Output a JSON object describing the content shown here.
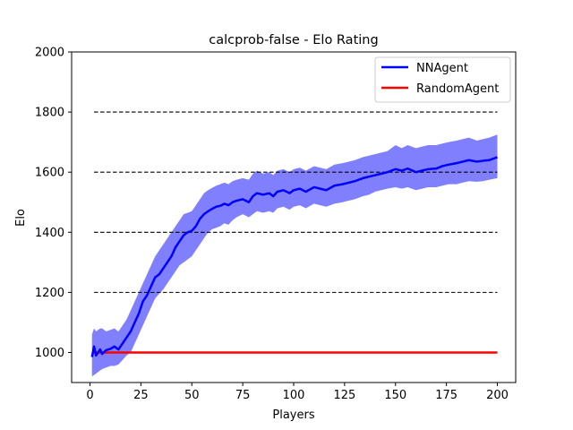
{
  "chart_data": {
    "type": "line",
    "title": "calcprob-false - Elo Rating",
    "xlabel": "Players",
    "ylabel": "Elo",
    "xlim": [
      -9,
      209
    ],
    "ylim": [
      900,
      2000
    ],
    "xticks": [
      0,
      25,
      50,
      75,
      100,
      125,
      150,
      175,
      200
    ],
    "yticks": [
      1000,
      1200,
      1400,
      1600,
      1800,
      2000
    ],
    "reference_lines": [
      1200,
      1400,
      1600,
      1800
    ],
    "legend_position": "top-right",
    "series": [
      {
        "name": "NNAgent",
        "color": "#0000ff",
        "band_color": "#8080ff",
        "x": [
          1,
          2,
          3,
          4,
          5,
          6,
          8,
          10,
          12,
          14,
          16,
          18,
          20,
          22,
          24,
          26,
          28,
          30,
          32,
          34,
          36,
          38,
          40,
          42,
          44,
          46,
          48,
          50,
          52,
          54,
          56,
          58,
          60,
          62,
          64,
          66,
          68,
          70,
          72,
          75,
          78,
          80,
          82,
          85,
          88,
          90,
          92,
          95,
          98,
          100,
          103,
          106,
          110,
          113,
          116,
          120,
          124,
          127,
          130,
          134,
          137,
          140,
          143,
          146,
          150,
          153,
          156,
          160,
          163,
          166,
          170,
          173,
          176,
          180,
          183,
          186,
          190,
          193,
          196,
          200
        ],
        "mean": [
          985,
          1020,
          990,
          1000,
          1010,
          995,
          1008,
          1012,
          1020,
          1010,
          1030,
          1050,
          1070,
          1100,
          1130,
          1170,
          1190,
          1220,
          1250,
          1260,
          1280,
          1300,
          1320,
          1350,
          1370,
          1390,
          1400,
          1405,
          1420,
          1445,
          1460,
          1470,
          1478,
          1485,
          1488,
          1495,
          1490,
          1500,
          1505,
          1510,
          1500,
          1520,
          1530,
          1525,
          1530,
          1520,
          1535,
          1540,
          1530,
          1540,
          1545,
          1535,
          1550,
          1545,
          1540,
          1555,
          1560,
          1565,
          1570,
          1580,
          1585,
          1590,
          1595,
          1600,
          1610,
          1605,
          1612,
          1600,
          1605,
          1610,
          1612,
          1620,
          1625,
          1630,
          1635,
          1640,
          1635,
          1638,
          1640,
          1650
        ],
        "lower": [
          920,
          925,
          930,
          935,
          940,
          945,
          950,
          955,
          955,
          960,
          975,
          990,
          1000,
          1030,
          1060,
          1090,
          1120,
          1150,
          1180,
          1195,
          1210,
          1230,
          1250,
          1270,
          1290,
          1300,
          1310,
          1320,
          1340,
          1360,
          1380,
          1400,
          1410,
          1415,
          1420,
          1430,
          1425,
          1440,
          1450,
          1460,
          1450,
          1460,
          1470,
          1465,
          1470,
          1465,
          1480,
          1485,
          1475,
          1485,
          1490,
          1480,
          1495,
          1490,
          1485,
          1495,
          1500,
          1505,
          1510,
          1520,
          1525,
          1535,
          1540,
          1545,
          1550,
          1545,
          1550,
          1540,
          1545,
          1550,
          1550,
          1555,
          1560,
          1560,
          1565,
          1570,
          1568,
          1570,
          1575,
          1580
        ],
        "upper": [
          1060,
          1080,
          1070,
          1075,
          1080,
          1080,
          1070,
          1075,
          1080,
          1070,
          1090,
          1110,
          1140,
          1170,
          1200,
          1230,
          1260,
          1290,
          1320,
          1340,
          1360,
          1380,
          1400,
          1420,
          1440,
          1460,
          1465,
          1470,
          1490,
          1510,
          1530,
          1540,
          1548,
          1555,
          1560,
          1565,
          1560,
          1570,
          1575,
          1580,
          1575,
          1595,
          1605,
          1595,
          1600,
          1590,
          1605,
          1610,
          1600,
          1610,
          1615,
          1605,
          1620,
          1615,
          1610,
          1625,
          1630,
          1635,
          1640,
          1650,
          1655,
          1660,
          1665,
          1670,
          1690,
          1680,
          1690,
          1680,
          1685,
          1690,
          1690,
          1695,
          1700,
          1705,
          1710,
          1715,
          1705,
          1710,
          1715,
          1725
        ]
      },
      {
        "name": "RandomAgent",
        "color": "#ff0000",
        "x": [
          1,
          200
        ],
        "mean": [
          1000,
          1000
        ]
      }
    ]
  }
}
